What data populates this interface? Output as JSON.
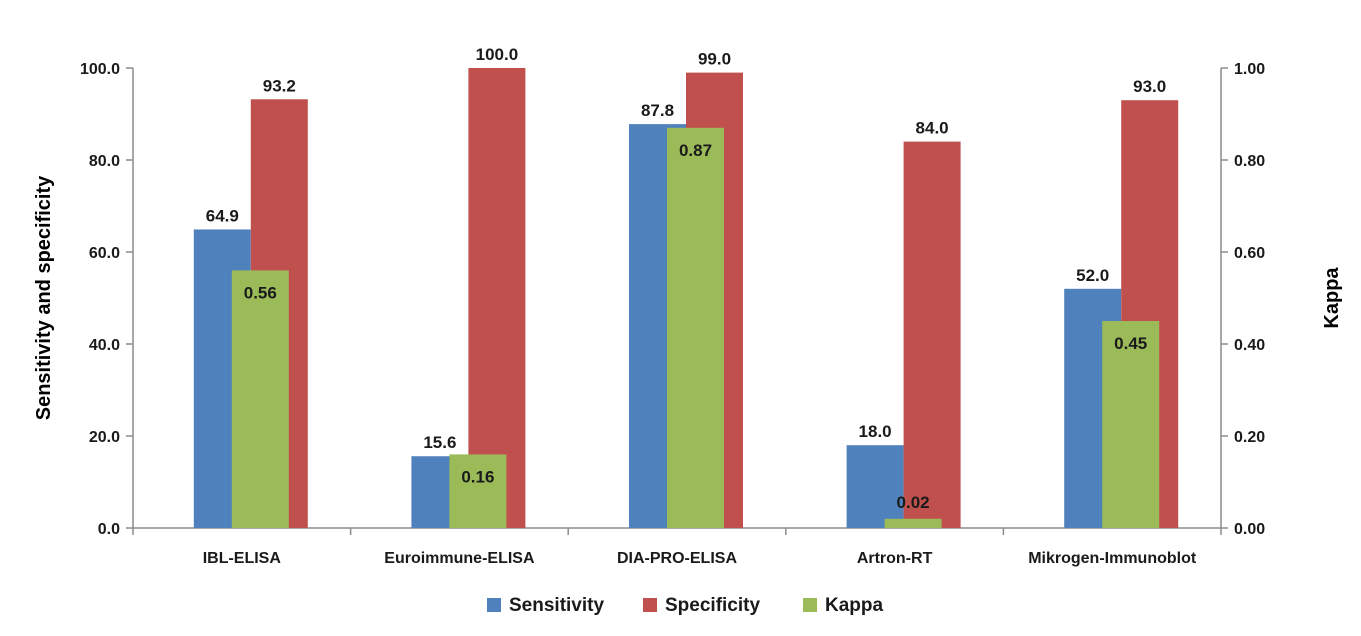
{
  "chart_data": {
    "type": "bar",
    "categories": [
      "IBL-ELISA",
      "Euroimmune-ELISA",
      "DIA-PRO-ELISA",
      "Artron-RT",
      "Mikrogen-Immunoblot"
    ],
    "series": [
      {
        "name": "Sensitivity",
        "axis": "left",
        "color": "#4f81bd",
        "values": [
          64.9,
          15.6,
          87.8,
          18.0,
          52.0
        ],
        "labels": [
          "64.9",
          "15.6",
          "87.8",
          "18.0",
          "52.0"
        ]
      },
      {
        "name": "Specificity",
        "axis": "left",
        "color": "#c0504d",
        "values": [
          93.2,
          100.0,
          99.0,
          84.0,
          93.0
        ],
        "labels": [
          "93.2",
          "100.0",
          "99.0",
          "84.0",
          "93.0"
        ]
      },
      {
        "name": "Kappa",
        "axis": "right",
        "color": "#9bbb59",
        "values": [
          0.56,
          0.16,
          0.87,
          0.02,
          0.45
        ],
        "labels": [
          "0.56",
          "0.16",
          "0.87",
          "0.02",
          "0.45"
        ]
      }
    ],
    "ylabel": "Sensitivity  and specificity",
    "y2label": "Kappa",
    "ylim": [
      0,
      100
    ],
    "y2lim": [
      0,
      1
    ],
    "yticks": [
      "0.0",
      "20.0",
      "40.0",
      "60.0",
      "80.0",
      "100.0"
    ],
    "y2ticks": [
      "0.00",
      "0.20",
      "0.40",
      "0.60",
      "0.80",
      "1.00"
    ],
    "grid": false,
    "legend": "bottom-center"
  }
}
